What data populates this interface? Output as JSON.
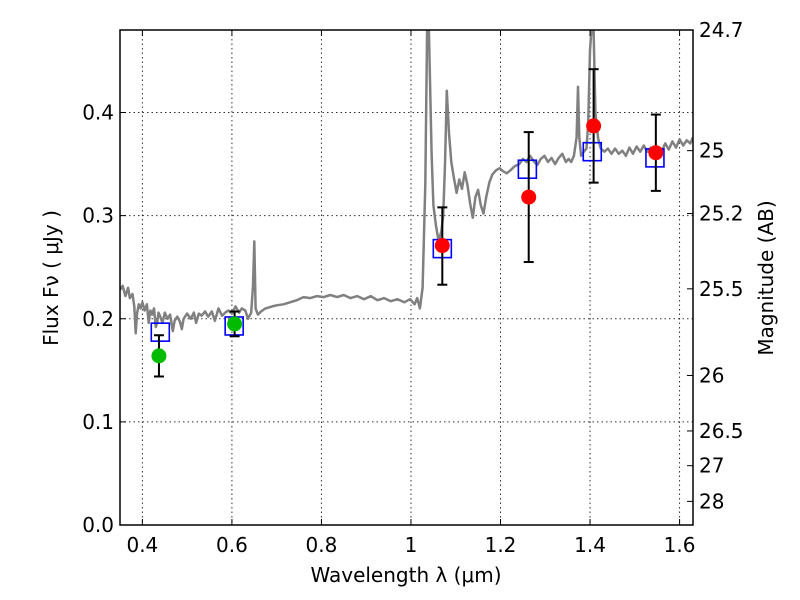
{
  "chart_data": {
    "type": "scatter",
    "x_axis": {
      "label": "Wavelength  λ (μm)",
      "range": [
        0.35,
        1.63
      ],
      "ticks": [
        0.4,
        0.6,
        0.8,
        1.0,
        1.2,
        1.4,
        1.6
      ],
      "tick_labels": [
        "0.4",
        "0.6",
        "0.8",
        "1",
        "1.2",
        "1.4",
        "1.6"
      ]
    },
    "y_axis": {
      "label": "Flux  Fν  ( μJy )",
      "range": [
        0.0,
        0.48
      ],
      "ticks": [
        0.0,
        0.1,
        0.2,
        0.3,
        0.4
      ],
      "tick_labels": [
        "0.0",
        "0.1",
        "0.2",
        "0.3",
        "0.4"
      ]
    },
    "y2_axis": {
      "label": "Magnitude (AB)",
      "tick_labels": [
        "24.7",
        "25",
        "25.2",
        "25.5",
        "26",
        "26.5",
        "27",
        "28"
      ],
      "tick_flux": [
        0.48,
        0.363,
        0.302,
        0.229,
        0.145,
        0.0912,
        0.0575,
        0.0229
      ]
    },
    "grid": true,
    "colors": {
      "spectrum": "#808080",
      "model": "#0000ff",
      "observed_green": "#00bb00",
      "observed_red": "#ff0000",
      "errorbar": "#000000"
    },
    "series": [
      {
        "kind": "line",
        "style": "spectrum",
        "points": [
          [
            0.35,
            0.228
          ],
          [
            0.356,
            0.232
          ],
          [
            0.362,
            0.222
          ],
          [
            0.368,
            0.23
          ],
          [
            0.372,
            0.22
          ],
          [
            0.378,
            0.224
          ],
          [
            0.382,
            0.212
          ],
          [
            0.385,
            0.186
          ],
          [
            0.388,
            0.205
          ],
          [
            0.392,
            0.214
          ],
          [
            0.396,
            0.21
          ],
          [
            0.4,
            0.216
          ],
          [
            0.405,
            0.208
          ],
          [
            0.41,
            0.214
          ],
          [
            0.414,
            0.196
          ],
          [
            0.418,
            0.208
          ],
          [
            0.422,
            0.204
          ],
          [
            0.426,
            0.21
          ],
          [
            0.43,
            0.192
          ],
          [
            0.433,
            0.196
          ],
          [
            0.436,
            0.206
          ],
          [
            0.44,
            0.202
          ],
          [
            0.445,
            0.196
          ],
          [
            0.45,
            0.206
          ],
          [
            0.456,
            0.2
          ],
          [
            0.462,
            0.204
          ],
          [
            0.468,
            0.188
          ],
          [
            0.472,
            0.198
          ],
          [
            0.478,
            0.202
          ],
          [
            0.484,
            0.197
          ],
          [
            0.488,
            0.19
          ],
          [
            0.492,
            0.2
          ],
          [
            0.5,
            0.205
          ],
          [
            0.508,
            0.2
          ],
          [
            0.515,
            0.206
          ],
          [
            0.52,
            0.196
          ],
          [
            0.526,
            0.205
          ],
          [
            0.532,
            0.203
          ],
          [
            0.54,
            0.207
          ],
          [
            0.547,
            0.202
          ],
          [
            0.555,
            0.207
          ],
          [
            0.562,
            0.198
          ],
          [
            0.57,
            0.21
          ],
          [
            0.578,
            0.203
          ],
          [
            0.585,
            0.206
          ],
          [
            0.592,
            0.208
          ],
          [
            0.6,
            0.205
          ],
          [
            0.608,
            0.212
          ],
          [
            0.616,
            0.206
          ],
          [
            0.622,
            0.21
          ],
          [
            0.63,
            0.208
          ],
          [
            0.636,
            0.2
          ],
          [
            0.643,
            0.206
          ],
          [
            0.647,
            0.232
          ],
          [
            0.65,
            0.275
          ],
          [
            0.653,
            0.21
          ],
          [
            0.658,
            0.204
          ],
          [
            0.665,
            0.207
          ],
          [
            0.675,
            0.21
          ],
          [
            0.69,
            0.212
          ],
          [
            0.7,
            0.213
          ],
          [
            0.715,
            0.214
          ],
          [
            0.73,
            0.216
          ],
          [
            0.745,
            0.218
          ],
          [
            0.76,
            0.221
          ],
          [
            0.775,
            0.22
          ],
          [
            0.79,
            0.222
          ],
          [
            0.805,
            0.221
          ],
          [
            0.82,
            0.223
          ],
          [
            0.835,
            0.221
          ],
          [
            0.85,
            0.223
          ],
          [
            0.865,
            0.22
          ],
          [
            0.88,
            0.222
          ],
          [
            0.895,
            0.219
          ],
          [
            0.91,
            0.222
          ],
          [
            0.925,
            0.218
          ],
          [
            0.94,
            0.22
          ],
          [
            0.955,
            0.217
          ],
          [
            0.97,
            0.219
          ],
          [
            0.985,
            0.216
          ],
          [
            0.998,
            0.219
          ],
          [
            1.008,
            0.214
          ],
          [
            1.014,
            0.22
          ],
          [
            1.02,
            0.21
          ],
          [
            1.026,
            0.23
          ],
          [
            1.032,
            0.33
          ],
          [
            1.036,
            0.48
          ],
          [
            1.04,
            0.48
          ],
          [
            1.046,
            0.36
          ],
          [
            1.05,
            0.31
          ],
          [
            1.056,
            0.29
          ],
          [
            1.062,
            0.275
          ],
          [
            1.068,
            0.285
          ],
          [
            1.072,
            0.3
          ],
          [
            1.076,
            0.35
          ],
          [
            1.08,
            0.421
          ],
          [
            1.085,
            0.38
          ],
          [
            1.09,
            0.352
          ],
          [
            1.096,
            0.336
          ],
          [
            1.102,
            0.322
          ],
          [
            1.108,
            0.335
          ],
          [
            1.114,
            0.326
          ],
          [
            1.12,
            0.342
          ],
          [
            1.126,
            0.33
          ],
          [
            1.132,
            0.312
          ],
          [
            1.138,
            0.298
          ],
          [
            1.144,
            0.318
          ],
          [
            1.15,
            0.325
          ],
          [
            1.156,
            0.31
          ],
          [
            1.162,
            0.302
          ],
          [
            1.168,
            0.318
          ],
          [
            1.175,
            0.332
          ],
          [
            1.182,
            0.34
          ],
          [
            1.19,
            0.344
          ],
          [
            1.198,
            0.346
          ],
          [
            1.206,
            0.343
          ],
          [
            1.214,
            0.341
          ],
          [
            1.222,
            0.344
          ],
          [
            1.232,
            0.348
          ],
          [
            1.242,
            0.35
          ],
          [
            1.25,
            0.355
          ],
          [
            1.258,
            0.352
          ],
          [
            1.266,
            0.358
          ],
          [
            1.274,
            0.353
          ],
          [
            1.282,
            0.349
          ],
          [
            1.29,
            0.355
          ],
          [
            1.298,
            0.358
          ],
          [
            1.306,
            0.352
          ],
          [
            1.314,
            0.356
          ],
          [
            1.322,
            0.35
          ],
          [
            1.33,
            0.356
          ],
          [
            1.338,
            0.36
          ],
          [
            1.346,
            0.352
          ],
          [
            1.352,
            0.355
          ],
          [
            1.358,
            0.352
          ],
          [
            1.364,
            0.358
          ],
          [
            1.37,
            0.376
          ],
          [
            1.373,
            0.425
          ],
          [
            1.376,
            0.376
          ],
          [
            1.38,
            0.358
          ],
          [
            1.386,
            0.362
          ],
          [
            1.392,
            0.365
          ],
          [
            1.396,
            0.39
          ],
          [
            1.4,
            0.46
          ],
          [
            1.403,
            0.48
          ],
          [
            1.408,
            0.48
          ],
          [
            1.412,
            0.4
          ],
          [
            1.418,
            0.375
          ],
          [
            1.424,
            0.365
          ],
          [
            1.432,
            0.362
          ],
          [
            1.44,
            0.365
          ],
          [
            1.448,
            0.36
          ],
          [
            1.456,
            0.365
          ],
          [
            1.464,
            0.36
          ],
          [
            1.472,
            0.363
          ],
          [
            1.48,
            0.358
          ],
          [
            1.488,
            0.366
          ],
          [
            1.496,
            0.36
          ],
          [
            1.504,
            0.367
          ],
          [
            1.512,
            0.362
          ],
          [
            1.52,
            0.368
          ],
          [
            1.528,
            0.362
          ],
          [
            1.536,
            0.366
          ],
          [
            1.544,
            0.363
          ],
          [
            1.552,
            0.366
          ],
          [
            1.56,
            0.362
          ],
          [
            1.568,
            0.37
          ],
          [
            1.576,
            0.364
          ],
          [
            1.584,
            0.372
          ],
          [
            1.592,
            0.366
          ],
          [
            1.6,
            0.374
          ],
          [
            1.608,
            0.368
          ],
          [
            1.616,
            0.373
          ],
          [
            1.624,
            0.37
          ],
          [
            1.63,
            0.376
          ]
        ]
      },
      {
        "kind": "scatter",
        "style": "model",
        "marker": "square",
        "points": [
          [
            0.44,
            0.187
          ],
          [
            0.605,
            0.193
          ],
          [
            1.07,
            0.268
          ],
          [
            1.26,
            0.345
          ],
          [
            1.405,
            0.362
          ],
          [
            1.545,
            0.356
          ]
        ]
      },
      {
        "kind": "errorbar",
        "style": "observed",
        "points": [
          {
            "x": 0.437,
            "y": 0.164,
            "yerr_low": 0.144,
            "yerr_high": 0.184,
            "color": "green"
          },
          {
            "x": 0.606,
            "y": 0.195,
            "yerr_low": 0.183,
            "yerr_high": 0.207,
            "color": "green"
          },
          {
            "x": 1.07,
            "y": 0.271,
            "yerr_low": 0.233,
            "yerr_high": 0.308,
            "color": "red"
          },
          {
            "x": 1.263,
            "y": 0.318,
            "yerr_low": 0.255,
            "yerr_high": 0.381,
            "color": "red"
          },
          {
            "x": 1.408,
            "y": 0.387,
            "yerr_low": 0.332,
            "yerr_high": 0.442,
            "color": "red"
          },
          {
            "x": 1.547,
            "y": 0.361,
            "yerr_low": 0.324,
            "yerr_high": 0.398,
            "color": "red"
          }
        ]
      }
    ]
  }
}
